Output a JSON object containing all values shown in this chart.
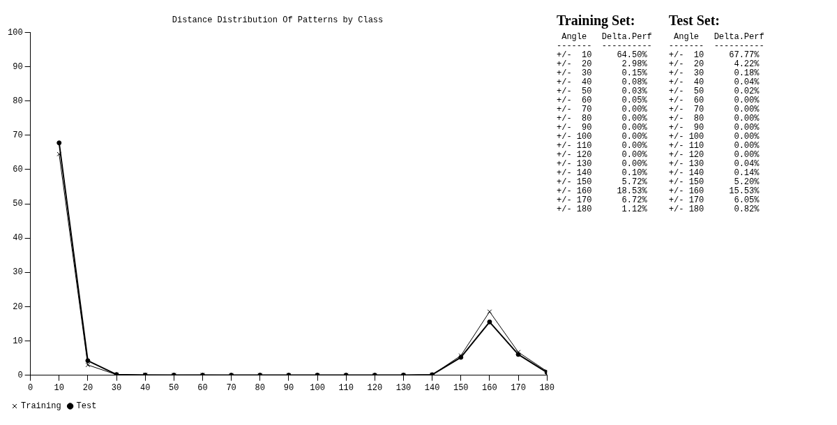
{
  "chart_data": {
    "type": "line",
    "title": "Distance Distribution Of Patterns by Class",
    "x": [
      10,
      20,
      30,
      40,
      50,
      60,
      70,
      80,
      90,
      100,
      110,
      120,
      130,
      140,
      150,
      160,
      170,
      180
    ],
    "xlim": [
      0,
      180
    ],
    "xticks": [
      0,
      10,
      20,
      30,
      40,
      50,
      60,
      70,
      80,
      90,
      100,
      110,
      120,
      130,
      140,
      150,
      160,
      170,
      180
    ],
    "ylim": [
      0,
      100
    ],
    "yticks": [
      0,
      10,
      20,
      30,
      40,
      50,
      60,
      70,
      80,
      90,
      100
    ],
    "grid": false,
    "legend": "bottom left",
    "series": [
      {
        "name": "Training",
        "color": "#000000",
        "marker": "cross",
        "values": [
          64.5,
          2.98,
          0.15,
          0.08,
          0.03,
          0.05,
          0.0,
          0.0,
          0.0,
          0.0,
          0.0,
          0.0,
          0.0,
          0.1,
          5.72,
          18.53,
          6.72,
          1.12
        ]
      },
      {
        "name": "Test",
        "color": "#000000",
        "marker": "circle",
        "values": [
          67.77,
          4.22,
          0.18,
          0.04,
          0.02,
          0.0,
          0.0,
          0.0,
          0.0,
          0.0,
          0.0,
          0.0,
          0.04,
          0.14,
          5.2,
          15.53,
          6.05,
          0.82
        ]
      }
    ],
    "annotations": [
      "Training Set:",
      " Angle   Delta.Perf",
      "-------  ----------",
      "+/-  10     64.50%",
      "+/-  20      2.98%",
      "+/-  30      0.15%",
      "+/-  40      0.08%",
      "+/-  50      0.03%",
      "+/-  60      0.05%",
      "+/-  70      0.00%",
      "+/-  80      0.00%",
      "+/-  90      0.00%",
      "+/- 100      0.00%",
      "+/- 110      0.00%",
      "+/- 120      0.00%",
      "+/- 130      0.00%",
      "+/- 140      0.10%",
      "+/- 150      5.72%",
      "+/- 160     18.53%",
      "+/- 170      6.72%",
      "+/- 180      1.12%",
      "Test Set:",
      " Angle   Delta.Perf",
      "-------  ----------",
      "+/-  10     67.77%",
      "+/-  20      4.22%",
      "+/-  30      0.18%",
      "+/-  40      0.04%",
      "+/-  50      0.02%",
      "+/-  60      0.00%",
      "+/-  70      0.00%",
      "+/-  80      0.00%",
      "+/-  90      0.00%",
      "+/- 100      0.00%",
      "+/- 110      0.00%",
      "+/- 120      0.00%",
      "+/- 130      0.04%",
      "+/- 140      0.14%",
      "+/- 150      5.20%",
      "+/- 160     15.53%",
      "+/- 170      6.05%",
      "+/- 180      0.82%"
    ]
  }
}
